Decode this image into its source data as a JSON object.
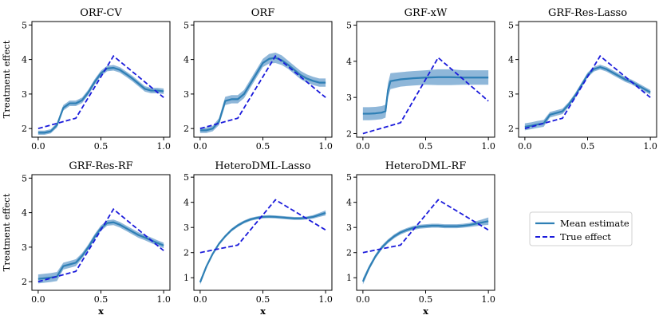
{
  "figure": {
    "legend": {
      "mean_label": "Mean estimate",
      "true_label": "True effect"
    },
    "colors": {
      "band": "#8fb7d9",
      "mean": "#2e7fb5",
      "true": "#1a1adb"
    }
  },
  "chart_data": [
    {
      "type": "line",
      "title": "ORF-CV",
      "xlabel": "",
      "ylabel": "Treatment effect",
      "xlim": [
        -0.05,
        1.05
      ],
      "ylim": [
        1.75,
        5.1
      ],
      "xticks": [
        0.0,
        0.5,
        1.0
      ],
      "xticklabels": [
        "0.0",
        "0.5",
        "1.0"
      ],
      "yticks": [
        2,
        3,
        4,
        5
      ],
      "yticklabels": [
        "2",
        "3",
        "4",
        "5"
      ],
      "true_effect": {
        "x": [
          0.0,
          0.3,
          0.6,
          1.0
        ],
        "y": [
          2.0,
          2.3,
          4.1,
          2.9
        ]
      },
      "mean_estimate": {
        "x": [
          0,
          0.05,
          0.1,
          0.15,
          0.2,
          0.25,
          0.3,
          0.35,
          0.4,
          0.45,
          0.5,
          0.55,
          0.6,
          0.65,
          0.7,
          0.75,
          0.8,
          0.85,
          0.9,
          0.95,
          1.0
        ],
        "y": [
          1.88,
          1.88,
          1.92,
          2.1,
          2.6,
          2.73,
          2.73,
          2.82,
          3.05,
          3.35,
          3.6,
          3.74,
          3.76,
          3.7,
          3.58,
          3.45,
          3.3,
          3.15,
          3.1,
          3.1,
          3.08
        ],
        "band": [
          0.06,
          0.06,
          0.06,
          0.07,
          0.08,
          0.08,
          0.08,
          0.08,
          0.08,
          0.08,
          0.08,
          0.08,
          0.08,
          0.08,
          0.08,
          0.08,
          0.08,
          0.08,
          0.08,
          0.08,
          0.08
        ]
      }
    },
    {
      "type": "line",
      "title": "ORF",
      "xlabel": "",
      "ylabel": "",
      "xlim": [
        -0.05,
        1.05
      ],
      "ylim": [
        1.75,
        5.1
      ],
      "xticks": [
        0.0,
        0.5,
        1.0
      ],
      "xticklabels": [
        "0.0",
        "0.5",
        "1.0"
      ],
      "yticks": [
        2,
        3,
        4,
        5
      ],
      "yticklabels": [
        "2",
        "3",
        "4",
        "5"
      ],
      "true_effect": {
        "x": [
          0.0,
          0.3,
          0.6,
          1.0
        ],
        "y": [
          2.0,
          2.3,
          4.1,
          2.9
        ]
      },
      "mean_estimate": {
        "x": [
          0,
          0.05,
          0.1,
          0.15,
          0.2,
          0.25,
          0.3,
          0.35,
          0.4,
          0.45,
          0.5,
          0.55,
          0.6,
          0.65,
          0.7,
          0.75,
          0.8,
          0.85,
          0.9,
          0.95,
          1.0
        ],
        "y": [
          1.95,
          1.95,
          2.0,
          2.2,
          2.8,
          2.85,
          2.85,
          3.0,
          3.3,
          3.6,
          3.9,
          4.02,
          4.05,
          3.98,
          3.85,
          3.7,
          3.55,
          3.45,
          3.38,
          3.33,
          3.33
        ],
        "band": [
          0.08,
          0.08,
          0.08,
          0.1,
          0.12,
          0.12,
          0.12,
          0.12,
          0.12,
          0.12,
          0.12,
          0.14,
          0.15,
          0.14,
          0.12,
          0.12,
          0.12,
          0.12,
          0.12,
          0.12,
          0.12
        ]
      }
    },
    {
      "type": "line",
      "title": "GRF-xW",
      "xlabel": "",
      "ylabel": "",
      "xlim": [
        -0.05,
        1.05
      ],
      "ylim": [
        1.9,
        5.1
      ],
      "xticks": [
        0.0,
        0.5,
        1.0
      ],
      "xticklabels": [
        "0.0",
        "0.5",
        "1.0"
      ],
      "yticks": [
        2,
        3,
        4,
        5
      ],
      "yticklabels": [
        "2",
        "3",
        "4",
        "5"
      ],
      "true_effect": {
        "x": [
          0.0,
          0.3,
          0.6,
          1.0
        ],
        "y": [
          2.0,
          2.3,
          4.1,
          2.9
        ]
      },
      "mean_estimate": {
        "x": [
          0,
          0.05,
          0.1,
          0.15,
          0.18,
          0.2,
          0.22,
          0.3,
          0.4,
          0.5,
          0.6,
          0.7,
          0.8,
          0.9,
          1.0
        ],
        "y": [
          2.55,
          2.55,
          2.56,
          2.58,
          2.62,
          3.2,
          3.45,
          3.5,
          3.53,
          3.55,
          3.56,
          3.56,
          3.55,
          3.55,
          3.55
        ],
        "band": [
          0.18,
          0.18,
          0.18,
          0.18,
          0.18,
          0.2,
          0.22,
          0.2,
          0.2,
          0.2,
          0.22,
          0.22,
          0.2,
          0.2,
          0.2
        ]
      }
    },
    {
      "type": "line",
      "title": "GRF-Res-Lasso",
      "xlabel": "",
      "ylabel": "",
      "xlim": [
        -0.05,
        1.05
      ],
      "ylim": [
        1.75,
        5.1
      ],
      "xticks": [
        0.0,
        0.5,
        1.0
      ],
      "xticklabels": [
        "0.0",
        "0.5",
        "1.0"
      ],
      "yticks": [
        2,
        3,
        4,
        5
      ],
      "yticklabels": [
        "2",
        "3",
        "4",
        "5"
      ],
      "true_effect": {
        "x": [
          0.0,
          0.3,
          0.6,
          1.0
        ],
        "y": [
          2.0,
          2.3,
          4.1,
          2.9
        ]
      },
      "mean_estimate": {
        "x": [
          0,
          0.05,
          0.1,
          0.15,
          0.2,
          0.25,
          0.3,
          0.35,
          0.4,
          0.45,
          0.5,
          0.55,
          0.6,
          0.65,
          0.7,
          0.75,
          0.8,
          0.85,
          0.9,
          0.95,
          1.0
        ],
        "y": [
          2.05,
          2.08,
          2.12,
          2.15,
          2.4,
          2.45,
          2.5,
          2.7,
          2.95,
          3.25,
          3.55,
          3.72,
          3.78,
          3.72,
          3.62,
          3.52,
          3.42,
          3.35,
          3.25,
          3.15,
          3.05
        ],
        "band": [
          0.1,
          0.1,
          0.1,
          0.1,
          0.08,
          0.08,
          0.08,
          0.07,
          0.07,
          0.07,
          0.07,
          0.07,
          0.07,
          0.07,
          0.07,
          0.07,
          0.07,
          0.07,
          0.07,
          0.07,
          0.07
        ]
      }
    },
    {
      "type": "line",
      "title": "GRF-Res-RF",
      "xlabel": "x",
      "ylabel": "Treatment effect",
      "xlim": [
        -0.05,
        1.05
      ],
      "ylim": [
        1.75,
        5.1
      ],
      "xticks": [
        0.0,
        0.5,
        1.0
      ],
      "xticklabels": [
        "0.0",
        "0.5",
        "1.0"
      ],
      "yticks": [
        2,
        3,
        4,
        5
      ],
      "yticklabels": [
        "2",
        "3",
        "4",
        "5"
      ],
      "true_effect": {
        "x": [
          0.0,
          0.3,
          0.6,
          1.0
        ],
        "y": [
          2.0,
          2.3,
          4.1,
          2.9
        ]
      },
      "mean_estimate": {
        "x": [
          0,
          0.05,
          0.1,
          0.15,
          0.2,
          0.25,
          0.3,
          0.35,
          0.4,
          0.45,
          0.5,
          0.55,
          0.6,
          0.65,
          0.7,
          0.75,
          0.8,
          0.85,
          0.9,
          0.95,
          1.0
        ],
        "y": [
          2.08,
          2.1,
          2.12,
          2.15,
          2.45,
          2.5,
          2.55,
          2.75,
          3.0,
          3.3,
          3.55,
          3.7,
          3.72,
          3.65,
          3.55,
          3.45,
          3.35,
          3.28,
          3.2,
          3.12,
          3.05
        ],
        "band": [
          0.13,
          0.13,
          0.13,
          0.13,
          0.1,
          0.1,
          0.1,
          0.08,
          0.08,
          0.08,
          0.08,
          0.08,
          0.08,
          0.08,
          0.08,
          0.08,
          0.08,
          0.08,
          0.08,
          0.08,
          0.08
        ]
      }
    },
    {
      "type": "line",
      "title": "HeteroDML-Lasso",
      "xlabel": "x",
      "ylabel": "",
      "xlim": [
        -0.05,
        1.05
      ],
      "ylim": [
        0.5,
        5.1
      ],
      "xticks": [
        0.0,
        0.5,
        1.0
      ],
      "xticklabels": [
        "0.0",
        "0.5",
        "1.0"
      ],
      "yticks": [
        1,
        2,
        3,
        4,
        5
      ],
      "yticklabels": [
        "1",
        "2",
        "3",
        "4",
        "5"
      ],
      "true_effect": {
        "x": [
          0.0,
          0.3,
          0.6,
          1.0
        ],
        "y": [
          2.0,
          2.3,
          4.1,
          2.9
        ]
      },
      "mean_estimate": {
        "x": [
          0,
          0.05,
          0.1,
          0.15,
          0.2,
          0.25,
          0.3,
          0.35,
          0.4,
          0.45,
          0.5,
          0.55,
          0.6,
          0.65,
          0.7,
          0.75,
          0.8,
          0.85,
          0.9,
          0.95,
          1.0
        ],
        "y": [
          0.82,
          1.45,
          1.95,
          2.35,
          2.65,
          2.9,
          3.08,
          3.22,
          3.32,
          3.38,
          3.42,
          3.43,
          3.42,
          3.4,
          3.38,
          3.36,
          3.36,
          3.38,
          3.42,
          3.5,
          3.58
        ],
        "band": [
          0.1,
          0.07,
          0.06,
          0.06,
          0.06,
          0.06,
          0.06,
          0.06,
          0.06,
          0.06,
          0.06,
          0.06,
          0.06,
          0.06,
          0.06,
          0.06,
          0.06,
          0.06,
          0.07,
          0.08,
          0.1
        ]
      }
    },
    {
      "type": "line",
      "title": "HeteroDML-RF",
      "xlabel": "x",
      "ylabel": "",
      "xlim": [
        -0.05,
        1.05
      ],
      "ylim": [
        0.5,
        5.1
      ],
      "xticks": [
        0.0,
        0.5,
        1.0
      ],
      "xticklabels": [
        "0.0",
        "0.5",
        "1.0"
      ],
      "yticks": [
        1,
        2,
        3,
        4,
        5
      ],
      "yticklabels": [
        "1",
        "2",
        "3",
        "4",
        "5"
      ],
      "true_effect": {
        "x": [
          0.0,
          0.3,
          0.6,
          1.0
        ],
        "y": [
          2.0,
          2.3,
          4.1,
          2.9
        ]
      },
      "mean_estimate": {
        "x": [
          0,
          0.05,
          0.1,
          0.15,
          0.2,
          0.25,
          0.3,
          0.35,
          0.4,
          0.45,
          0.5,
          0.55,
          0.6,
          0.65,
          0.7,
          0.75,
          0.8,
          0.85,
          0.9,
          0.95,
          1.0
        ],
        "y": [
          0.85,
          1.4,
          1.85,
          2.2,
          2.45,
          2.65,
          2.8,
          2.9,
          2.98,
          3.03,
          3.05,
          3.07,
          3.07,
          3.05,
          3.05,
          3.05,
          3.07,
          3.1,
          3.15,
          3.2,
          3.25
        ],
        "band": [
          0.12,
          0.09,
          0.08,
          0.08,
          0.08,
          0.08,
          0.08,
          0.08,
          0.08,
          0.08,
          0.08,
          0.08,
          0.08,
          0.08,
          0.08,
          0.08,
          0.08,
          0.08,
          0.1,
          0.12,
          0.15
        ]
      }
    }
  ]
}
